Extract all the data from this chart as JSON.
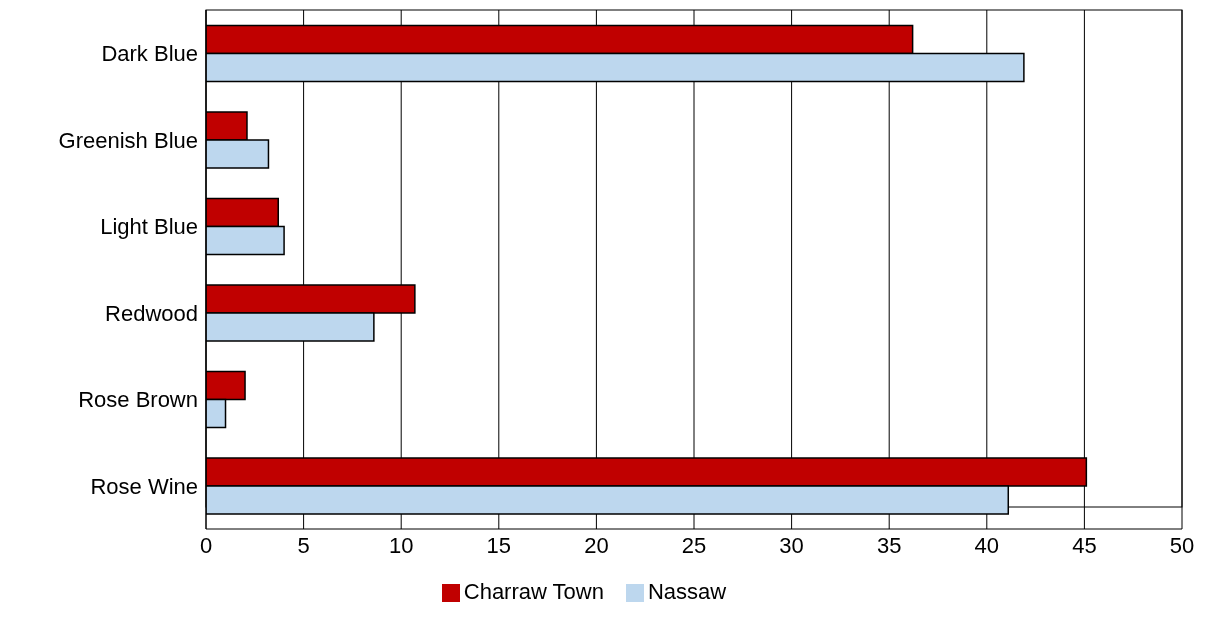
{
  "chart_data": {
    "type": "bar",
    "orientation": "horizontal",
    "categories": [
      "Dark Blue",
      "Greenish Blue",
      "Light Blue",
      "Redwood",
      "Rose Brown",
      "Rose Wine"
    ],
    "series": [
      {
        "name": "Charraw Town",
        "color": "#c00000",
        "values": [
          36.2,
          2.1,
          3.7,
          10.7,
          2.0,
          45.1
        ]
      },
      {
        "name": "Nassaw",
        "color": "#bdd7ee",
        "values": [
          41.9,
          3.2,
          4.0,
          8.6,
          1.0,
          41.1
        ]
      }
    ],
    "xlim": [
      0,
      50
    ],
    "xticks": [
      0,
      5,
      10,
      15,
      20,
      25,
      30,
      35,
      40,
      45,
      50
    ],
    "grid": "x",
    "legend": "bottom"
  }
}
